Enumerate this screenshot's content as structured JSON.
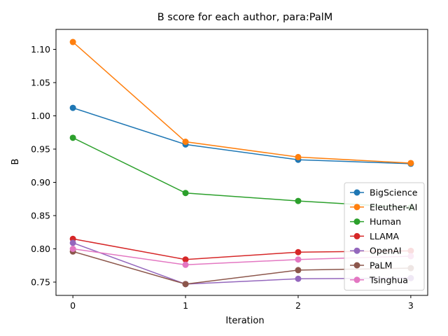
{
  "chart_data": {
    "type": "line",
    "title": "B score for each author, para:PalM",
    "xlabel": "Iteration",
    "ylabel": "B",
    "x": [
      0,
      1,
      2,
      3
    ],
    "xticks": [
      "0",
      "1",
      "2",
      "3"
    ],
    "xlim": [
      -0.15,
      3.15
    ],
    "ylim": [
      0.73,
      1.13
    ],
    "yticks": [
      "0.75",
      "0.80",
      "0.85",
      "0.90",
      "0.95",
      "1.00",
      "1.05",
      "1.10"
    ],
    "ytick_values": [
      0.75,
      0.8,
      0.85,
      0.9,
      0.95,
      1.0,
      1.05,
      1.1
    ],
    "grid": false,
    "legend_position": "bottom-right",
    "series": [
      {
        "name": "BigScience",
        "color": "#1f77b4",
        "values": [
          1.012,
          0.957,
          0.934,
          0.928
        ]
      },
      {
        "name": "Eleuther-AI",
        "color": "#ff7f0e",
        "values": [
          1.111,
          0.961,
          0.938,
          0.929
        ]
      },
      {
        "name": "Human",
        "color": "#2ca02c",
        "values": [
          0.967,
          0.884,
          0.872,
          0.862
        ]
      },
      {
        "name": "LLAMA",
        "color": "#d62728",
        "values": [
          0.815,
          0.784,
          0.795,
          0.797
        ]
      },
      {
        "name": "OpenAI",
        "color": "#9467bd",
        "values": [
          0.809,
          0.747,
          0.755,
          0.756
        ]
      },
      {
        "name": "PaLM",
        "color": "#8c564b",
        "values": [
          0.796,
          0.747,
          0.768,
          0.771
        ]
      },
      {
        "name": "Tsinghua",
        "color": "#e377c2",
        "values": [
          0.8,
          0.776,
          0.784,
          0.789
        ]
      }
    ]
  }
}
